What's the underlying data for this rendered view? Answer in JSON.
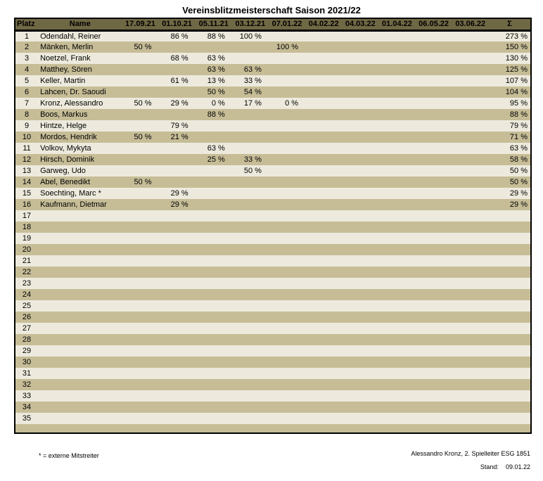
{
  "title": "Vereinsblitzmeisterschaft Saison 2021/22",
  "colors": {
    "header_bg": "#6f6844",
    "row_light": "#edeadd",
    "row_dark": "#c6bd97",
    "border": "#000000"
  },
  "table": {
    "headers": {
      "platz": "Platz",
      "name": "Name",
      "dates": [
        "17.09.21",
        "01.10.21",
        "05.11.21",
        "03.12.21",
        "07.01.22",
        "04.02.22",
        "04.03.22",
        "01.04.22",
        "06.05.22",
        "03.06.22"
      ],
      "sum": "Σ"
    },
    "rows": [
      {
        "platz": "1",
        "name": "Odendahl, Reiner",
        "scores": [
          "",
          "86 %",
          "88 %",
          "100 %",
          "",
          "",
          "",
          "",
          "",
          ""
        ],
        "sum": "273 %"
      },
      {
        "platz": "2",
        "name": "Mänken, Merlin",
        "scores": [
          "50 %",
          "",
          "",
          "",
          "100 %",
          "",
          "",
          "",
          "",
          ""
        ],
        "sum": "150 %"
      },
      {
        "platz": "3",
        "name": "Noetzel, Frank",
        "scores": [
          "",
          "68 %",
          "63 %",
          "",
          "",
          "",
          "",
          "",
          "",
          ""
        ],
        "sum": "130 %"
      },
      {
        "platz": "4",
        "name": "Matthey, Sören",
        "scores": [
          "",
          "",
          "63 %",
          "63 %",
          "",
          "",
          "",
          "",
          "",
          ""
        ],
        "sum": "125 %"
      },
      {
        "platz": "5",
        "name": "Keller, Martin",
        "scores": [
          "",
          "61 %",
          "13 %",
          "33 %",
          "",
          "",
          "",
          "",
          "",
          ""
        ],
        "sum": "107 %"
      },
      {
        "platz": "6",
        "name": "Lahcen, Dr. Saoudi",
        "scores": [
          "",
          "",
          "50 %",
          "54 %",
          "",
          "",
          "",
          "",
          "",
          ""
        ],
        "sum": "104 %"
      },
      {
        "platz": "7",
        "name": "Kronz, Alessandro",
        "scores": [
          "50 %",
          "29 %",
          "0 %",
          "17 %",
          "0 %",
          "",
          "",
          "",
          "",
          ""
        ],
        "sum": "95 %"
      },
      {
        "platz": "8",
        "name": "Boos, Markus",
        "scores": [
          "",
          "",
          "88 %",
          "",
          "",
          "",
          "",
          "",
          "",
          ""
        ],
        "sum": "88 %"
      },
      {
        "platz": "9",
        "name": "Hintze, Helge",
        "scores": [
          "",
          "79 %",
          "",
          "",
          "",
          "",
          "",
          "",
          "",
          ""
        ],
        "sum": "79 %"
      },
      {
        "platz": "10",
        "name": "Mordos, Hendrik",
        "scores": [
          "50 %",
          "21 %",
          "",
          "",
          "",
          "",
          "",
          "",
          "",
          ""
        ],
        "sum": "71 %"
      },
      {
        "platz": "11",
        "name": "Volkov, Mykyta",
        "scores": [
          "",
          "",
          "63 %",
          "",
          "",
          "",
          "",
          "",
          "",
          ""
        ],
        "sum": "63 %"
      },
      {
        "platz": "12",
        "name": "Hirsch, Dominik",
        "scores": [
          "",
          "",
          "25 %",
          "33 %",
          "",
          "",
          "",
          "",
          "",
          ""
        ],
        "sum": "58 %"
      },
      {
        "platz": "13",
        "name": "Garweg, Udo",
        "scores": [
          "",
          "",
          "",
          "50 %",
          "",
          "",
          "",
          "",
          "",
          ""
        ],
        "sum": "50 %"
      },
      {
        "platz": "14",
        "name": "Abel, Benedikt",
        "scores": [
          "50 %",
          "",
          "",
          "",
          "",
          "",
          "",
          "",
          "",
          ""
        ],
        "sum": "50 %"
      },
      {
        "platz": "15",
        "name": "Soechting, Marc *",
        "scores": [
          "",
          "29 %",
          "",
          "",
          "",
          "",
          "",
          "",
          "",
          ""
        ],
        "sum": "29 %"
      },
      {
        "platz": "16",
        "name": "Kaufmann, Dietmar",
        "scores": [
          "",
          "29 %",
          "",
          "",
          "",
          "",
          "",
          "",
          "",
          ""
        ],
        "sum": "29 %"
      },
      {
        "platz": "17",
        "name": "",
        "scores": [
          "",
          "",
          "",
          "",
          "",
          "",
          "",
          "",
          "",
          ""
        ],
        "sum": ""
      },
      {
        "platz": "18",
        "name": "",
        "scores": [
          "",
          "",
          "",
          "",
          "",
          "",
          "",
          "",
          "",
          ""
        ],
        "sum": ""
      },
      {
        "platz": "19",
        "name": "",
        "scores": [
          "",
          "",
          "",
          "",
          "",
          "",
          "",
          "",
          "",
          ""
        ],
        "sum": ""
      },
      {
        "platz": "20",
        "name": "",
        "scores": [
          "",
          "",
          "",
          "",
          "",
          "",
          "",
          "",
          "",
          ""
        ],
        "sum": ""
      },
      {
        "platz": "21",
        "name": "",
        "scores": [
          "",
          "",
          "",
          "",
          "",
          "",
          "",
          "",
          "",
          ""
        ],
        "sum": ""
      },
      {
        "platz": "22",
        "name": "",
        "scores": [
          "",
          "",
          "",
          "",
          "",
          "",
          "",
          "",
          "",
          ""
        ],
        "sum": ""
      },
      {
        "platz": "23",
        "name": "",
        "scores": [
          "",
          "",
          "",
          "",
          "",
          "",
          "",
          "",
          "",
          ""
        ],
        "sum": ""
      },
      {
        "platz": "24",
        "name": "",
        "scores": [
          "",
          "",
          "",
          "",
          "",
          "",
          "",
          "",
          "",
          ""
        ],
        "sum": ""
      },
      {
        "platz": "25",
        "name": "",
        "scores": [
          "",
          "",
          "",
          "",
          "",
          "",
          "",
          "",
          "",
          ""
        ],
        "sum": ""
      },
      {
        "platz": "26",
        "name": "",
        "scores": [
          "",
          "",
          "",
          "",
          "",
          "",
          "",
          "",
          "",
          ""
        ],
        "sum": ""
      },
      {
        "platz": "27",
        "name": "",
        "scores": [
          "",
          "",
          "",
          "",
          "",
          "",
          "",
          "",
          "",
          ""
        ],
        "sum": ""
      },
      {
        "platz": "28",
        "name": "",
        "scores": [
          "",
          "",
          "",
          "",
          "",
          "",
          "",
          "",
          "",
          ""
        ],
        "sum": ""
      },
      {
        "platz": "29",
        "name": "",
        "scores": [
          "",
          "",
          "",
          "",
          "",
          "",
          "",
          "",
          "",
          ""
        ],
        "sum": ""
      },
      {
        "platz": "30",
        "name": "",
        "scores": [
          "",
          "",
          "",
          "",
          "",
          "",
          "",
          "",
          "",
          ""
        ],
        "sum": ""
      },
      {
        "platz": "31",
        "name": "",
        "scores": [
          "",
          "",
          "",
          "",
          "",
          "",
          "",
          "",
          "",
          ""
        ],
        "sum": ""
      },
      {
        "platz": "32",
        "name": "",
        "scores": [
          "",
          "",
          "",
          "",
          "",
          "",
          "",
          "",
          "",
          ""
        ],
        "sum": ""
      },
      {
        "platz": "33",
        "name": "",
        "scores": [
          "",
          "",
          "",
          "",
          "",
          "",
          "",
          "",
          "",
          ""
        ],
        "sum": ""
      },
      {
        "platz": "34",
        "name": "",
        "scores": [
          "",
          "",
          "",
          "",
          "",
          "",
          "",
          "",
          "",
          ""
        ],
        "sum": ""
      },
      {
        "platz": "35",
        "name": "",
        "scores": [
          "",
          "",
          "",
          "",
          "",
          "",
          "",
          "",
          "",
          ""
        ],
        "sum": ""
      }
    ]
  },
  "footer": {
    "legend": "* = externe Mitstreiter",
    "credit": "Alessandro Kronz, 2. Spielleiter ESG 1851",
    "stand_label": "Stand:",
    "stand_value": "09.01.22"
  }
}
